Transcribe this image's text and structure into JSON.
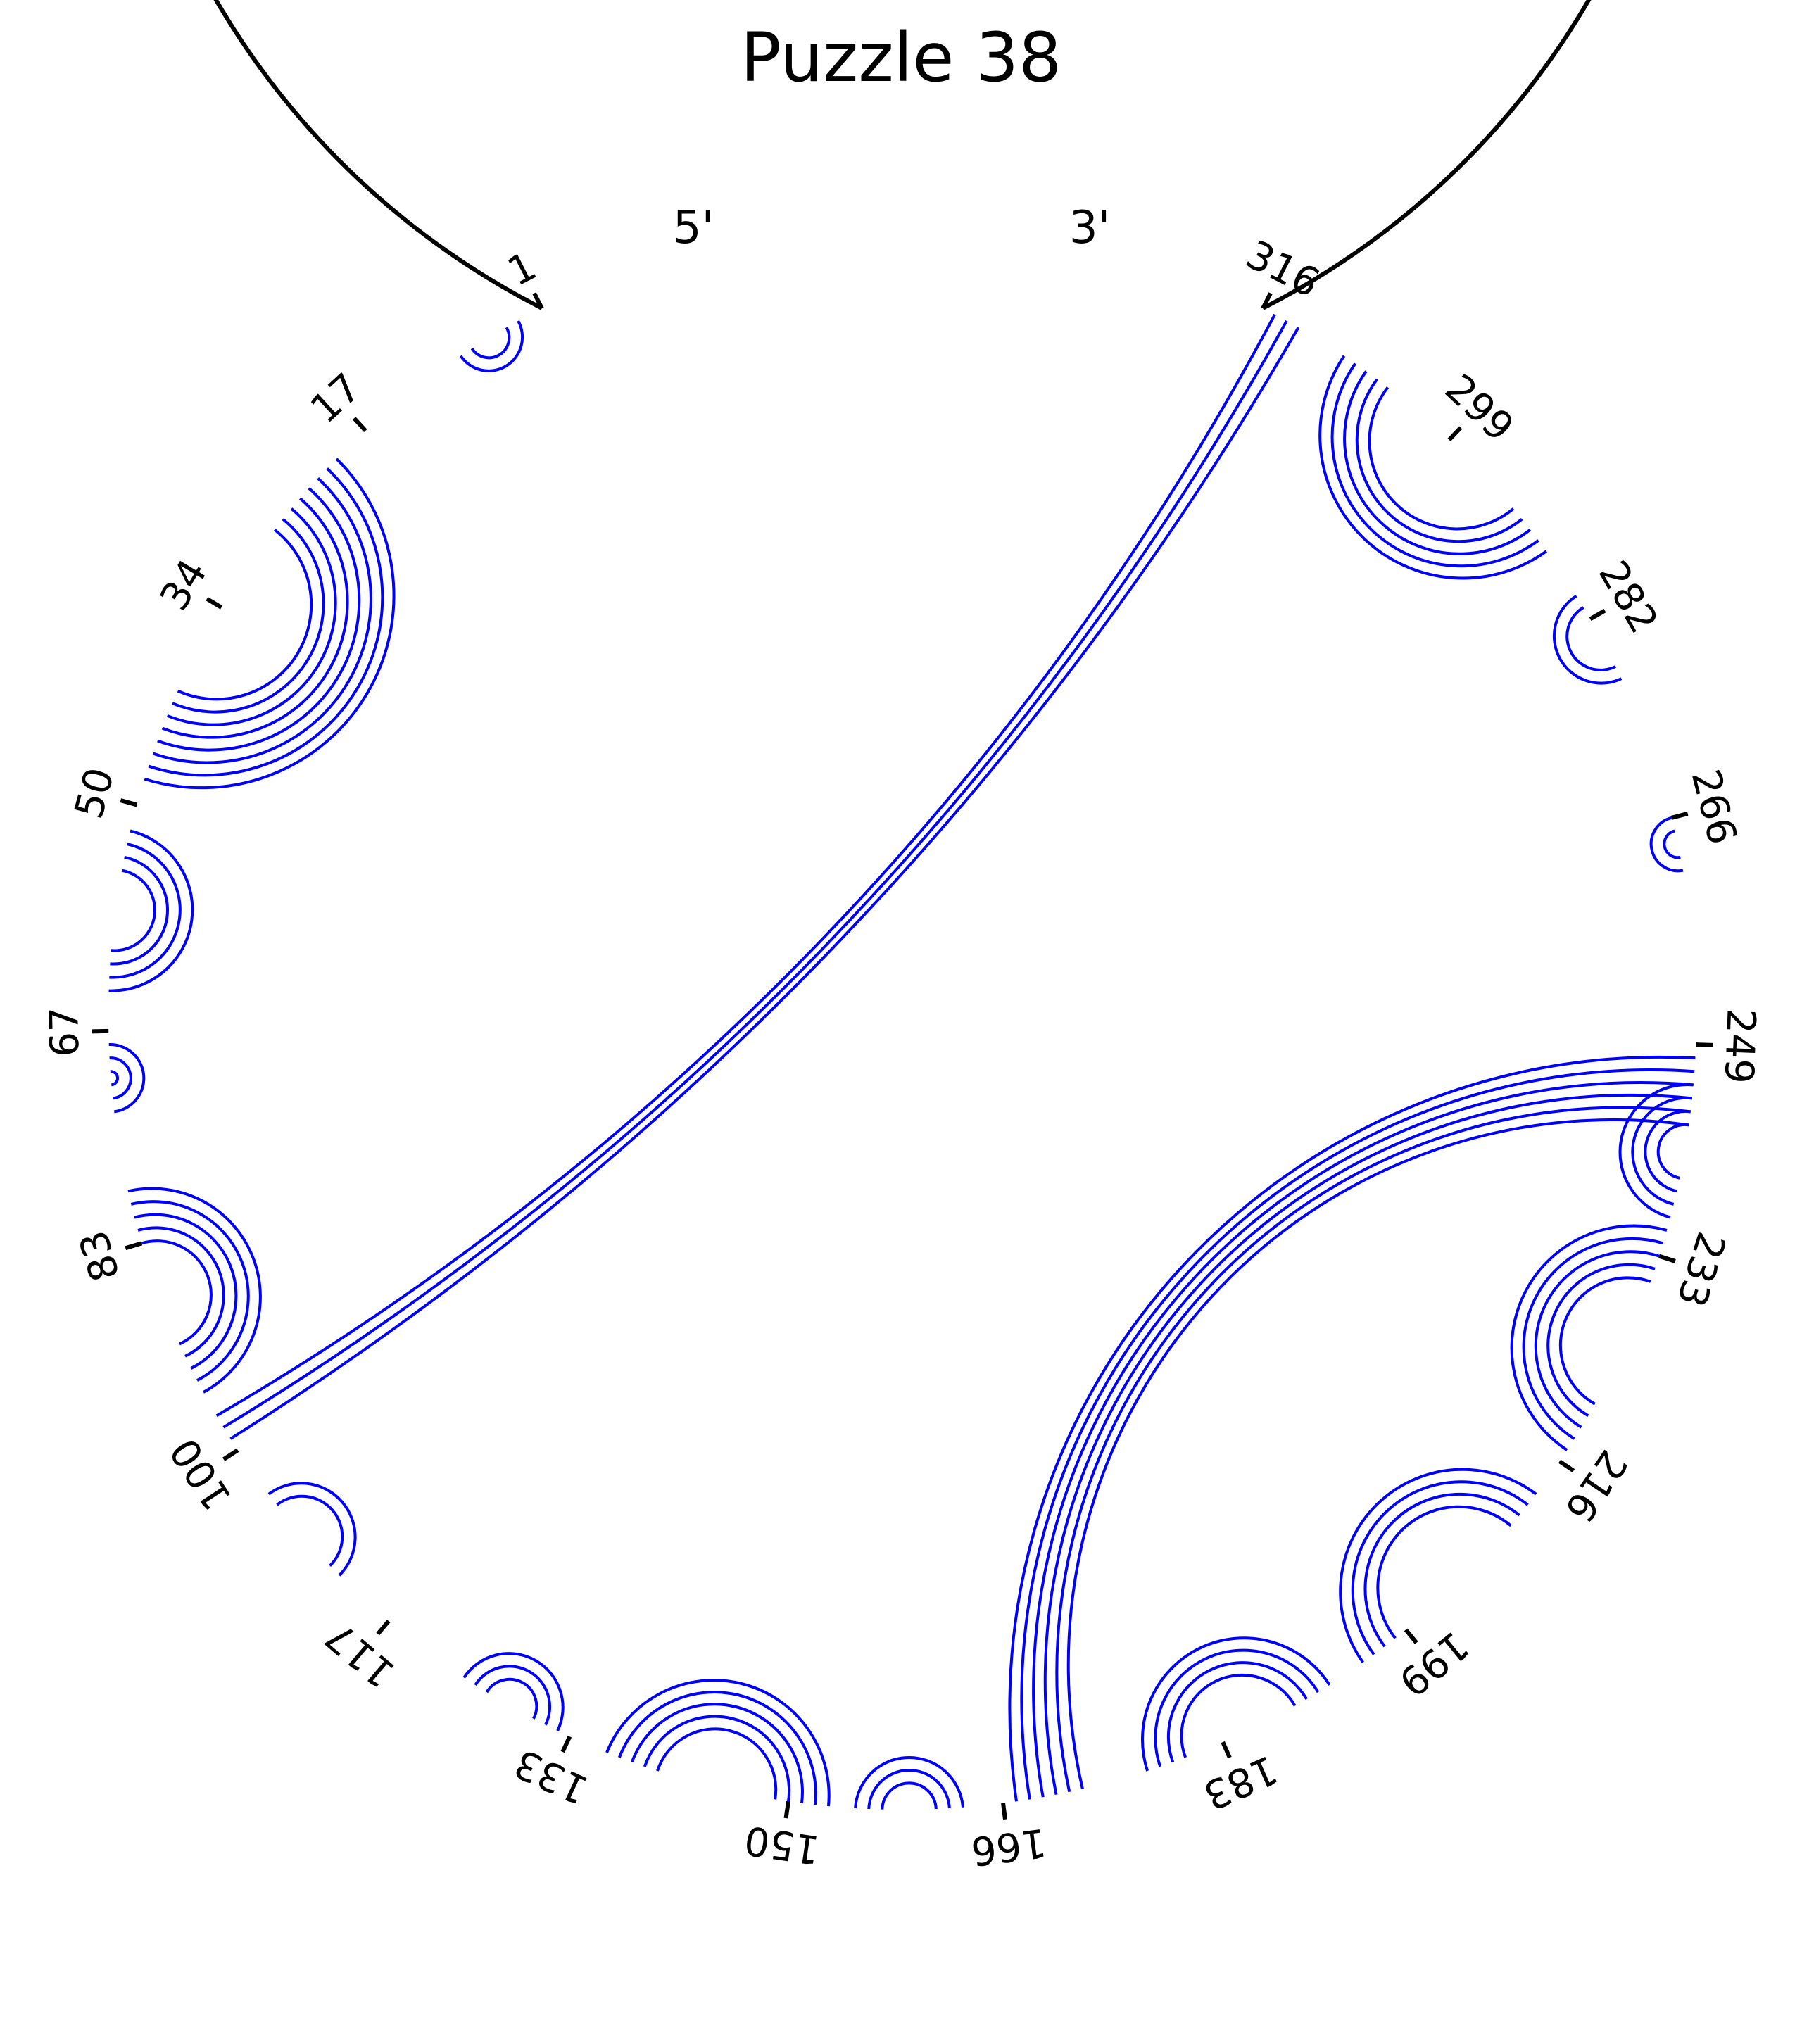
{
  "title": "Puzzle 38",
  "five_prime_label": "5'",
  "three_prime_label": "3'",
  "colors": {
    "backbone": "#000000",
    "pairs": "#0000ff"
  },
  "chart_data": {
    "type": "arc diagram",
    "sequence_length": 316,
    "tick_labels": [
      "1",
      "17",
      "34",
      "50",
      "67",
      "83",
      "100",
      "117",
      "133",
      "150",
      "166",
      "183",
      "199",
      "216",
      "233",
      "249",
      "266",
      "282",
      "299",
      "316"
    ],
    "helices": [
      {
        "i": 3,
        "j": 8,
        "length": 2
      },
      {
        "i": 20,
        "j": 48,
        "length": 8
      },
      {
        "i": 52,
        "j": 64,
        "length": 4
      },
      {
        "i": 68,
        "j": 73,
        "length": 3
      },
      {
        "i": 79,
        "j": 95,
        "length": 5
      },
      {
        "i": 97,
        "j": 315,
        "length": 3
      },
      {
        "i": 104,
        "j": 112,
        "length": 2
      },
      {
        "i": 124,
        "j": 132,
        "length": 3
      },
      {
        "i": 136,
        "j": 153,
        "length": 5
      },
      {
        "i": 155,
        "j": 163,
        "length": 3
      },
      {
        "i": 167,
        "j": 248,
        "length": 6
      },
      {
        "i": 177,
        "j": 192,
        "length": 4
      },
      {
        "i": 195,
        "j": 213,
        "length": 4
      },
      {
        "i": 217,
        "j": 235,
        "length": 5
      },
      {
        "i": 236,
        "j": 246,
        "length": 4
      },
      {
        "i": 262,
        "j": 266,
        "length": 2
      },
      {
        "i": 277,
        "j": 284,
        "length": 2
      },
      {
        "i": 288,
        "j": 309,
        "length": 5
      }
    ]
  }
}
